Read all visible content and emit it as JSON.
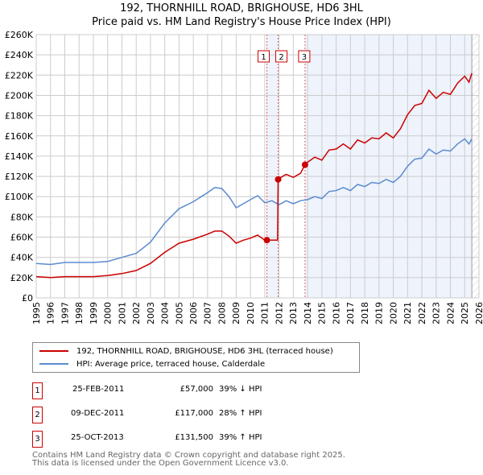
{
  "chart_data": {
    "type": "line",
    "title": "192, THORNHILL ROAD, BRIGHOUSE, HD6 3HL",
    "subtitle": "Price paid vs. HM Land Registry's House Price Index (HPI)",
    "xlim": [
      1995,
      2026
    ],
    "ylim": [
      0,
      260000
    ],
    "x_ticks": [
      "1995",
      "1996",
      "1997",
      "1998",
      "1999",
      "2000",
      "2001",
      "2002",
      "2003",
      "2004",
      "2005",
      "2006",
      "2007",
      "2008",
      "2009",
      "2010",
      "2011",
      "2012",
      "2013",
      "2014",
      "2015",
      "2016",
      "2017",
      "2018",
      "2019",
      "2020",
      "2021",
      "2022",
      "2023",
      "2024",
      "2025",
      "2026"
    ],
    "y_ticks": [
      "£0",
      "£20K",
      "£40K",
      "£60K",
      "£80K",
      "£100K",
      "£120K",
      "£140K",
      "£160K",
      "£180K",
      "£200K",
      "£220K",
      "£240K",
      "£260K"
    ],
    "grid": true,
    "series": [
      {
        "name": "192, THORNHILL ROAD, BRIGHOUSE, HD6 3HL (terraced house)",
        "color": "#cc0000",
        "x": [
          1995,
          1996,
          1997,
          1998,
          1999,
          2000,
          2001,
          2002,
          2003,
          2004,
          2005,
          2006,
          2007,
          2007.5,
          2008,
          2008.5,
          2009,
          2009.5,
          2010,
          2010.5,
          2011,
          2011.15,
          2011.9,
          2011.94,
          2012,
          2012.5,
          2013,
          2013.5,
          2013.82,
          2014,
          2014.5,
          2015,
          2015.5,
          2016,
          2016.5,
          2017,
          2017.5,
          2018,
          2018.5,
          2019,
          2019.5,
          2020,
          2020.5,
          2021,
          2021.5,
          2022,
          2022.5,
          2023,
          2023.5,
          2024,
          2024.5,
          2025,
          2025.3,
          2025.5
        ],
        "y": [
          21,
          20,
          21,
          21,
          21,
          22,
          24,
          27,
          34,
          45,
          54,
          58,
          63,
          66,
          66,
          61,
          54,
          57,
          59,
          62,
          57,
          57,
          57,
          117,
          118,
          122,
          119,
          123,
          131.5,
          134,
          139,
          136,
          146,
          147,
          152,
          147,
          156,
          153,
          158,
          157,
          163,
          158,
          167,
          181,
          190,
          192,
          205,
          197,
          203,
          201,
          212,
          219,
          213,
          222
        ]
      },
      {
        "name": "HPI: Average price, terraced house, Calderdale",
        "color": "#5b8bd0",
        "x": [
          1995,
          1996,
          1997,
          1998,
          1999,
          2000,
          2001,
          2002,
          2003,
          2004,
          2005,
          2006,
          2007,
          2007.5,
          2008,
          2008.5,
          2009,
          2009.5,
          2010,
          2010.5,
          2011,
          2011.5,
          2012,
          2012.5,
          2013,
          2013.5,
          2014,
          2014.5,
          2015,
          2015.5,
          2016,
          2016.5,
          2017,
          2017.5,
          2018,
          2018.5,
          2019,
          2019.5,
          2020,
          2020.5,
          2021,
          2021.5,
          2022,
          2022.5,
          2023,
          2023.5,
          2024,
          2024.5,
          2025,
          2025.3,
          2025.5
        ],
        "y": [
          34,
          33,
          35,
          35,
          35,
          36,
          40,
          44,
          55,
          74,
          88,
          95,
          104,
          109,
          108,
          100,
          89,
          93,
          97,
          101,
          94,
          96,
          92,
          96,
          93,
          96,
          97,
          100,
          98,
          105,
          106,
          109,
          106,
          112,
          110,
          114,
          113,
          117,
          114,
          120,
          130,
          137,
          138,
          147,
          142,
          146,
          145,
          152,
          157,
          152,
          157
        ]
      }
    ],
    "y_unit": "thousands GBP",
    "sales": [
      {
        "label": "1",
        "x": 2011.15,
        "date": "25-FEB-2011",
        "price": "£57,000",
        "value": 57,
        "hpi": "39% ↓ HPI"
      },
      {
        "label": "2",
        "x": 2011.94,
        "date": "09-DEC-2011",
        "price": "£117,000",
        "value": 117,
        "hpi": "28% ↑ HPI"
      },
      {
        "label": "3",
        "x": 2013.82,
        "date": "25-OCT-2013",
        "price": "£131,500",
        "value": 131.5,
        "hpi": "39% ↑ HPI"
      }
    ],
    "shaded_ranges": [
      [
        2011.15,
        2011.94
      ],
      [
        2013.82,
        2025.5
      ]
    ],
    "hatched_from": 2025.5,
    "legend": "below"
  },
  "footer": [
    "Contains HM Land Registry data © Crown copyright and database right 2025.",
    "This data is licensed under the Open Government Licence v3.0."
  ]
}
